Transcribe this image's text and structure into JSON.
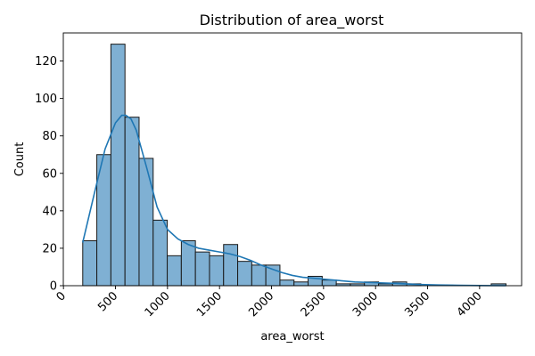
{
  "chart_data": {
    "type": "bar",
    "title": "Distribution of area_worst",
    "xlabel": "area_worst",
    "ylabel": "Count",
    "xlim": [
      -1.5,
      4404
    ],
    "ylim": [
      0,
      135
    ],
    "x_ticks": [
      0,
      500,
      1000,
      1500,
      2000,
      2500,
      3000,
      3500,
      4000
    ],
    "y_ticks": [
      0,
      20,
      40,
      60,
      80,
      100,
      120
    ],
    "grid": false,
    "bin_edges": [
      185.2,
      320.6,
      456.0,
      591.4,
      726.8,
      862.2,
      997.6,
      1133.0,
      1268.4,
      1403.8,
      1539.2,
      1674.6,
      1810.0,
      1945.4,
      2080.8,
      2216.2,
      2351.6,
      2487.0,
      2622.4,
      2757.8,
      2893.2,
      3028.6,
      3164.0,
      3299.4,
      3434.8,
      3570.2,
      3705.6,
      3841.0,
      3976.4,
      4111.8,
      4254.0
    ],
    "counts": [
      24,
      70,
      129,
      90,
      68,
      35,
      16,
      24,
      18,
      16,
      22,
      13,
      11,
      11,
      3,
      2,
      5,
      3,
      1,
      1,
      2,
      1,
      2,
      1,
      0,
      0,
      0,
      0,
      0,
      1
    ],
    "kde": {
      "x": [
        185,
        300,
        400,
        500,
        560,
        600,
        650,
        700,
        800,
        900,
        1000,
        1100,
        1200,
        1300,
        1400,
        1500,
        1600,
        1700,
        1800,
        1900,
        2000,
        2100,
        2200,
        2300,
        2400,
        2500,
        2600,
        2800,
        3000,
        3200,
        3400,
        3600,
        3800,
        4000,
        4254
      ],
      "y": [
        23,
        50,
        73,
        87,
        91,
        91,
        89,
        83,
        63,
        42,
        30,
        25,
        22,
        20,
        19,
        18,
        17,
        15.5,
        13.5,
        11,
        9,
        7,
        5.5,
        4.5,
        4,
        3.5,
        3,
        2,
        1.6,
        1.2,
        0.7,
        0.4,
        0.2,
        0.1,
        0
      ]
    }
  }
}
